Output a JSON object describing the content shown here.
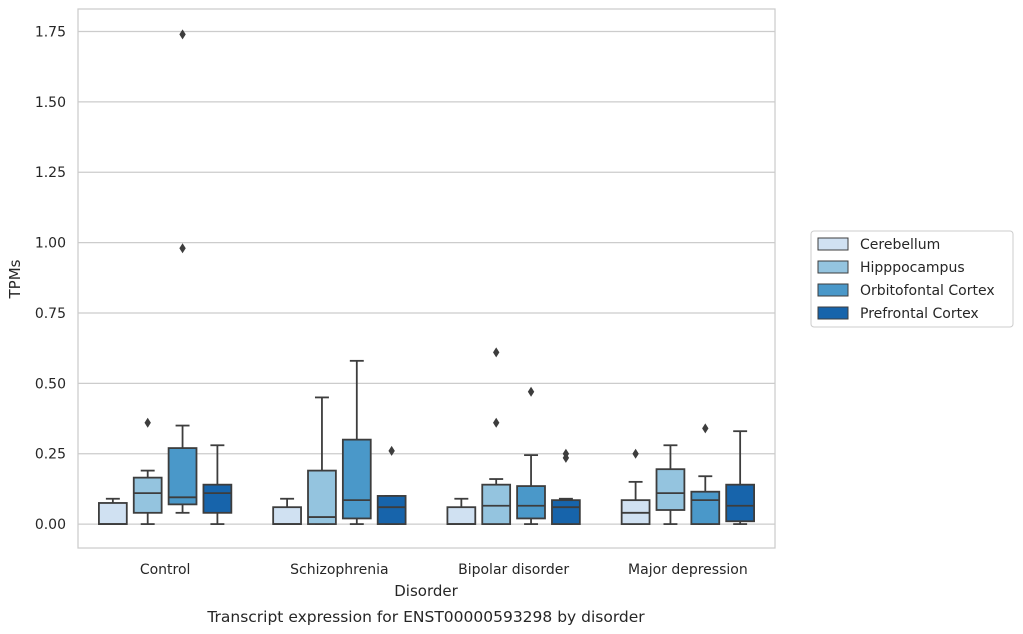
{
  "chart_data": {
    "type": "box",
    "title": "",
    "caption": "Transcript expression for ENST00000593298 by disorder",
    "xlabel": "Disorder",
    "ylabel": "TPMs",
    "ylim": [
      -0.085,
      1.83
    ],
    "yticks": [
      "0.00",
      "0.25",
      "0.50",
      "0.75",
      "1.00",
      "1.25",
      "1.50",
      "1.75"
    ],
    "grid": "horizontal",
    "legend_position": "right",
    "categories": [
      "Control",
      "Schizophrenia",
      "Bipolar disorder",
      "Major depression"
    ],
    "series": [
      {
        "name": "Cerebellum",
        "color": "#d0e1f2",
        "boxes": [
          {
            "whislo": 0.0,
            "q1": 0.0,
            "med": 0.0,
            "q3": 0.075,
            "whishi": 0.09,
            "fliers": []
          },
          {
            "whislo": 0.0,
            "q1": 0.0,
            "med": 0.0,
            "q3": 0.06,
            "whishi": 0.09,
            "fliers": []
          },
          {
            "whislo": 0.0,
            "q1": 0.0,
            "med": 0.0,
            "q3": 0.06,
            "whishi": 0.09,
            "fliers": []
          },
          {
            "whislo": 0.0,
            "q1": 0.0,
            "med": 0.04,
            "q3": 0.085,
            "whishi": 0.15,
            "fliers": [
              0.25
            ]
          }
        ]
      },
      {
        "name": "Hipppocampus",
        "color": "#94c4df",
        "boxes": [
          {
            "whislo": 0.0,
            "q1": 0.04,
            "med": 0.11,
            "q3": 0.165,
            "whishi": 0.19,
            "fliers": [
              0.36
            ]
          },
          {
            "whislo": 0.0,
            "q1": 0.0,
            "med": 0.025,
            "q3": 0.19,
            "whishi": 0.45,
            "fliers": []
          },
          {
            "whislo": 0.0,
            "q1": 0.0,
            "med": 0.065,
            "q3": 0.14,
            "whishi": 0.16,
            "fliers": [
              0.36,
              0.61
            ]
          },
          {
            "whislo": 0.0,
            "q1": 0.05,
            "med": 0.11,
            "q3": 0.195,
            "whishi": 0.28,
            "fliers": []
          }
        ]
      },
      {
        "name": "Orbitofontal Cortex",
        "color": "#4a98c9",
        "boxes": [
          {
            "whislo": 0.04,
            "q1": 0.07,
            "med": 0.095,
            "q3": 0.27,
            "whishi": 0.35,
            "fliers": [
              0.98,
              1.74
            ]
          },
          {
            "whislo": 0.0,
            "q1": 0.02,
            "med": 0.085,
            "q3": 0.3,
            "whishi": 0.58,
            "fliers": []
          },
          {
            "whislo": 0.0,
            "q1": 0.02,
            "med": 0.065,
            "q3": 0.135,
            "whishi": 0.245,
            "fliers": [
              0.47
            ]
          },
          {
            "whislo": 0.0,
            "q1": 0.0,
            "med": 0.085,
            "q3": 0.115,
            "whishi": 0.17,
            "fliers": [
              0.34
            ]
          }
        ]
      },
      {
        "name": "Prefrontal Cortex",
        "color": "#1764ab",
        "boxes": [
          {
            "whislo": 0.0,
            "q1": 0.04,
            "med": 0.11,
            "q3": 0.14,
            "whishi": 0.28,
            "fliers": []
          },
          {
            "whislo": 0.0,
            "q1": 0.0,
            "med": 0.06,
            "q3": 0.1,
            "whishi": 0.1,
            "fliers": [
              0.26
            ]
          },
          {
            "whislo": 0.0,
            "q1": 0.0,
            "med": 0.06,
            "q3": 0.085,
            "whishi": 0.09,
            "fliers": [
              0.235,
              0.25
            ]
          },
          {
            "whislo": 0.0,
            "q1": 0.01,
            "med": 0.065,
            "q3": 0.14,
            "whishi": 0.33,
            "fliers": []
          }
        ]
      }
    ]
  }
}
